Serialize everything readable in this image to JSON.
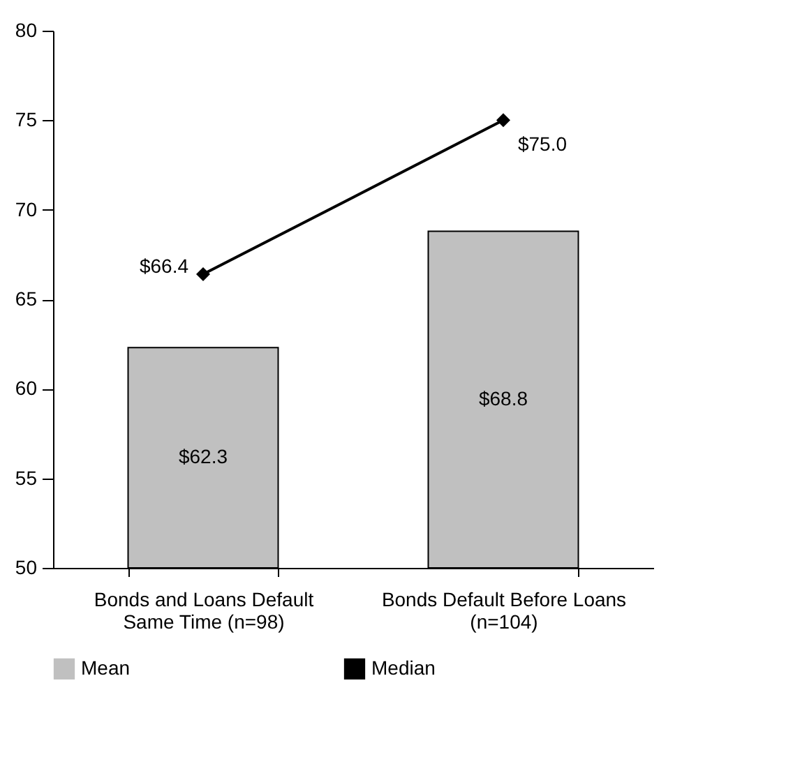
{
  "chart_data": {
    "type": "bar",
    "categories": [
      "Bonds and Loans Default Same Time (n=98)",
      "Bonds Default Before Loans (n=104)"
    ],
    "series": [
      {
        "name": "Mean",
        "color": "#c0c0c0",
        "values": [
          62.3,
          68.8
        ],
        "value_labels": [
          "$62.3",
          "$68.8"
        ]
      },
      {
        "name": "Median",
        "type": "line",
        "color": "#000000",
        "marker": "diamond",
        "values": [
          66.4,
          75.0
        ],
        "value_labels": [
          "$66.4",
          "$75.0"
        ]
      }
    ],
    "ylim": [
      50,
      80
    ],
    "yticks": [
      50,
      55,
      60,
      65,
      70,
      75,
      80
    ],
    "grid": false,
    "legend": "bottom"
  }
}
